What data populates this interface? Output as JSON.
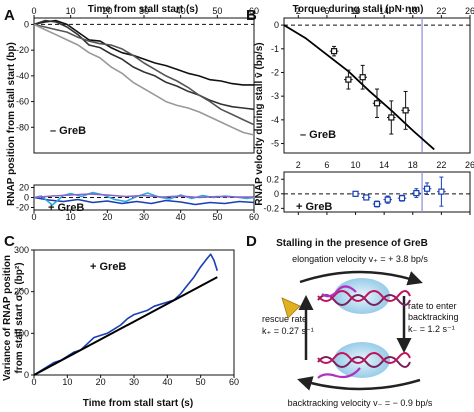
{
  "panels": {
    "A": {
      "letter": "A",
      "top_axis_label": "Time from stall start (s)",
      "y_label": "RNAP position from stall start (bp)",
      "condition_top": "– GreB",
      "condition_bottom": "+ GreB"
    },
    "B": {
      "letter": "B",
      "top_axis_label": "Torque during stall (pN·nm)",
      "y_label": "RNAP velocity during stall v̄ (bp/s)",
      "condition_top": "– GreB",
      "condition_bottom": "+ GreB"
    },
    "C": {
      "letter": "C",
      "y_label_line1": "Variance of RNAP position",
      "y_label_line2": "from stall start σ²ₓ (bp²)",
      "x_label": "Time from stall start (s)",
      "condition": "+ GreB"
    },
    "D": {
      "letter": "D",
      "title": "Stalling in the presence of GreB",
      "elongation": "elongation velocity v₊ = + 3.8 bp/s",
      "backtracking_rate_line1": "rate to enter",
      "backtracking_rate_line2": "backtracking",
      "backtracking_rate_value": "k₋ = 1.2 s⁻¹",
      "rescue_line1": "rescue rate",
      "rescue_value": "k₊ = 0.27 s⁻¹",
      "backtracking_velocity": "backtracking velocity v₋ = − 0.9 bp/s",
      "colors": {
        "rna": "#c0135a",
        "dna": "#7a1f5c",
        "bubble": "#9fd0ea",
        "arrow": "#222222",
        "cone": "#e0b020"
      }
    }
  },
  "chart_data": [
    {
      "panel": "A-top",
      "type": "line",
      "xlim": [
        0,
        60
      ],
      "ylim": [
        -100,
        5
      ],
      "x_ticks": [
        0,
        10,
        20,
        30,
        40,
        50,
        60
      ],
      "y_ticks": [
        0,
        -20,
        -40,
        -60,
        -80
      ],
      "x_tick_position": "top",
      "zero_line": "dashed",
      "series": [
        {
          "color": "#111111",
          "x": [
            0,
            3,
            6,
            9,
            12,
            15,
            18,
            21,
            24,
            27,
            30,
            33,
            36,
            39,
            42,
            45,
            48,
            51,
            54,
            57,
            60
          ],
          "y": [
            0,
            2,
            3,
            0,
            -6,
            -12,
            -13,
            -18,
            -22,
            -24,
            -27,
            -30,
            -32,
            -35,
            -38,
            -40,
            -43,
            -44,
            -46,
            -47,
            -47
          ]
        },
        {
          "color": "#333333",
          "x": [
            0,
            3,
            6,
            9,
            12,
            15,
            18,
            21,
            24,
            27,
            30,
            33,
            36,
            39,
            42,
            45,
            48,
            51,
            54,
            57,
            60
          ],
          "y": [
            0,
            3,
            2,
            -2,
            -8,
            -16,
            -18,
            -23,
            -27,
            -33,
            -37,
            -40,
            -45,
            -48,
            -52,
            -55,
            -59,
            -62,
            -64,
            -65,
            -66
          ]
        },
        {
          "color": "#555555",
          "x": [
            0,
            3,
            6,
            9,
            12,
            15,
            18,
            21,
            24,
            27,
            30,
            33,
            36,
            39,
            42,
            45,
            48,
            51,
            54,
            57,
            60
          ],
          "y": [
            0,
            -2,
            -4,
            -6,
            -10,
            -13,
            -15,
            -16,
            -19,
            -24,
            -30,
            -35,
            -40,
            -44,
            -49,
            -55,
            -60,
            -66,
            -70,
            -74,
            -78
          ]
        },
        {
          "color": "#999999",
          "x": [
            0,
            3,
            6,
            9,
            12,
            15,
            18,
            21,
            24,
            27,
            30,
            33,
            36,
            39,
            42,
            45,
            48,
            51,
            54,
            57,
            60
          ],
          "y": [
            0,
            -4,
            -8,
            -12,
            -16,
            -22,
            -26,
            -33,
            -38,
            -45,
            -50,
            -55,
            -60,
            -63,
            -65,
            -68,
            -72,
            -76,
            -80,
            -84,
            -86
          ]
        }
      ]
    },
    {
      "panel": "A-bottom",
      "type": "line",
      "xlim": [
        0,
        60
      ],
      "ylim": [
        -25,
        25
      ],
      "x_ticks": [
        0,
        10,
        20,
        30,
        40,
        50,
        60
      ],
      "y_ticks": [
        20,
        0,
        -20
      ],
      "zero_line": "dashed",
      "series": [
        {
          "color": "#1a3fb3",
          "x": [
            0,
            4,
            8,
            12,
            16,
            20,
            24,
            28,
            32,
            36,
            40,
            44,
            48,
            52,
            56,
            60
          ],
          "y": [
            0,
            -5,
            -8,
            -4,
            -10,
            -7,
            -12,
            -8,
            -12,
            -6,
            -9,
            -14,
            -10,
            -12,
            -8,
            -10
          ]
        },
        {
          "color": "#2fa7e0",
          "x": [
            0,
            2,
            5,
            8,
            10,
            13,
            16,
            19,
            22,
            25,
            28,
            31,
            34,
            37,
            40,
            43,
            46,
            49,
            52,
            55,
            58,
            60
          ],
          "y": [
            0,
            3,
            -15,
            4,
            8,
            2,
            10,
            5,
            -4,
            -8,
            2,
            9,
            1,
            -3,
            5,
            -2,
            4,
            0,
            3,
            1,
            -2,
            0
          ]
        },
        {
          "color": "#8a63c9",
          "x": [
            0,
            5,
            10,
            15,
            20,
            25,
            30,
            35,
            40,
            45,
            50,
            55,
            60
          ],
          "y": [
            0,
            3,
            5,
            7,
            5,
            2,
            4,
            1,
            3,
            0,
            2,
            1,
            1
          ]
        }
      ]
    },
    {
      "panel": "B-top",
      "type": "scatter",
      "xlim": [
        0,
        26
      ],
      "ylim": [
        -5.4,
        0.3
      ],
      "x_ticks": [
        2,
        6,
        10,
        14,
        18,
        22,
        26
      ],
      "y_ticks": [
        0,
        -1,
        -2,
        -3,
        -4,
        -5
      ],
      "x_tick_position": "top",
      "zero_line": "dashed",
      "vertical_line_x": 19.3,
      "points": [
        {
          "x": 7.0,
          "y": -1.1,
          "xerr": 0.6,
          "yerr": 0.2
        },
        {
          "x": 9.0,
          "y": -2.3,
          "xerr": 0.6,
          "yerr": 0.4
        },
        {
          "x": 11.0,
          "y": -2.2,
          "xerr": 0.6,
          "yerr": 0.5
        },
        {
          "x": 13.0,
          "y": -3.3,
          "xerr": 0.6,
          "yerr": 0.6
        },
        {
          "x": 15.0,
          "y": -3.9,
          "xerr": 0.6,
          "yerr": 0.7
        },
        {
          "x": 17.0,
          "y": -3.6,
          "xerr": 0.6,
          "yerr": 0.8
        }
      ],
      "fit_curve": {
        "x": [
          0,
          3,
          6,
          9,
          12,
          15,
          18,
          21
        ],
        "y": [
          0,
          -0.55,
          -1.25,
          -1.95,
          -2.8,
          -3.6,
          -4.45,
          -5.25
        ]
      }
    },
    {
      "panel": "B-bottom",
      "type": "scatter",
      "xlim": [
        0,
        26
      ],
      "ylim": [
        -0.25,
        0.3
      ],
      "x_ticks": [
        2,
        6,
        10,
        14,
        18,
        22,
        26
      ],
      "y_ticks": [
        0.2,
        0,
        -0.2
      ],
      "zero_line": "dashed",
      "vertical_line_x": 19.3,
      "points": [
        {
          "x": 10.0,
          "y": 0.0,
          "xerr": 0.6,
          "yerr": 0.02
        },
        {
          "x": 11.5,
          "y": -0.05,
          "xerr": 0.6,
          "yerr": 0.03
        },
        {
          "x": 13.0,
          "y": -0.14,
          "xerr": 0.6,
          "yerr": 0.04
        },
        {
          "x": 14.5,
          "y": -0.08,
          "xerr": 0.6,
          "yerr": 0.05
        },
        {
          "x": 16.5,
          "y": -0.06,
          "xerr": 0.6,
          "yerr": 0.04
        },
        {
          "x": 18.5,
          "y": 0.01,
          "xerr": 0.6,
          "yerr": 0.06
        },
        {
          "x": 20.0,
          "y": 0.07,
          "xerr": 0.6,
          "yerr": 0.08
        },
        {
          "x": 22.0,
          "y": 0.03,
          "xerr": 0.6,
          "yerr": 0.2
        }
      ]
    },
    {
      "panel": "C",
      "type": "line",
      "xlim": [
        0,
        60
      ],
      "ylim": [
        0,
        300
      ],
      "x_ticks": [
        0,
        10,
        20,
        30,
        40,
        50,
        60
      ],
      "y_ticks": [
        0,
        100,
        200,
        300
      ],
      "series": [
        {
          "color": "#1a3fb3",
          "x": [
            0,
            2,
            4,
            6,
            8,
            10,
            12,
            14,
            16,
            18,
            20,
            22,
            24,
            26,
            28,
            30,
            32,
            34,
            36,
            38,
            40,
            42,
            44,
            46,
            48,
            50,
            52,
            53,
            54,
            55
          ],
          "y": [
            0,
            10,
            20,
            30,
            35,
            45,
            55,
            60,
            75,
            90,
            95,
            100,
            110,
            120,
            135,
            145,
            150,
            155,
            165,
            170,
            175,
            180,
            195,
            215,
            235,
            260,
            280,
            290,
            275,
            250
          ]
        },
        {
          "color": "#000000",
          "x": [
            0,
            55
          ],
          "y": [
            0,
            235
          ]
        }
      ]
    }
  ]
}
